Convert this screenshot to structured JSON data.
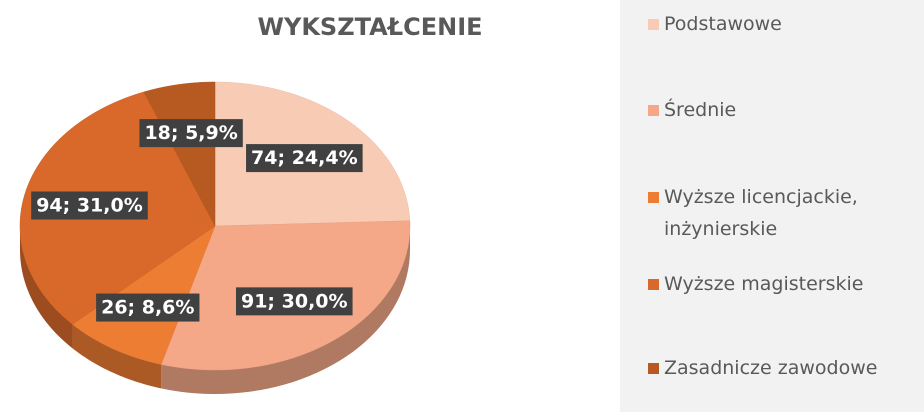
{
  "chart_data": {
    "type": "pie",
    "title": "WYKSZTAŁCENIE",
    "categories": [
      "Podstawowe",
      "Średnie",
      "Wyższe licencjackie, inżynierskie",
      "Wyższe magisterskie",
      "Zasadnicze zawodowe"
    ],
    "values": [
      74,
      91,
      26,
      94,
      18
    ],
    "value_labels": [
      "74; 24,4%",
      "91; 30,0%",
      "26; 8,6%",
      "94; 31,0%",
      "18; 5,9%"
    ],
    "colors": [
      "#f8cbb4",
      "#f4a887",
      "#ee7d34",
      "#d8692a",
      "#b65a22"
    ],
    "legend": "right"
  }
}
